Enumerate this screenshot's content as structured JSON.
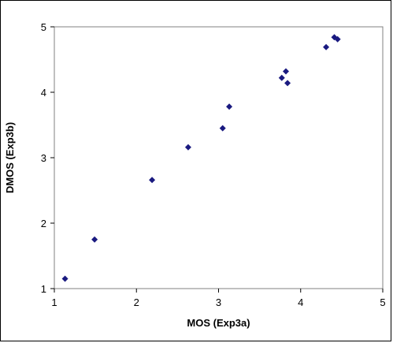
{
  "chart_data": {
    "type": "scatter",
    "title": "",
    "xlabel": "MOS  (Exp3a)",
    "ylabel": "DMOS (Exp3b)",
    "xlim": [
      1,
      5
    ],
    "ylim": [
      1,
      5
    ],
    "xticks": [
      "1",
      "2",
      "3",
      "4",
      "5"
    ],
    "yticks": [
      "1",
      "2",
      "3",
      "4",
      "5"
    ],
    "grid": false,
    "legend": "none",
    "marker": "diamond",
    "marker_color": "#1a1a80",
    "points": [
      {
        "x": 1.13,
        "y": 1.15
      },
      {
        "x": 1.49,
        "y": 1.75
      },
      {
        "x": 2.19,
        "y": 2.66
      },
      {
        "x": 2.63,
        "y": 3.16
      },
      {
        "x": 3.05,
        "y": 3.45
      },
      {
        "x": 3.13,
        "y": 3.78
      },
      {
        "x": 3.77,
        "y": 4.22
      },
      {
        "x": 3.82,
        "y": 4.32
      },
      {
        "x": 3.84,
        "y": 4.14
      },
      {
        "x": 4.31,
        "y": 4.69
      },
      {
        "x": 4.41,
        "y": 4.84
      },
      {
        "x": 4.45,
        "y": 4.81
      }
    ]
  }
}
